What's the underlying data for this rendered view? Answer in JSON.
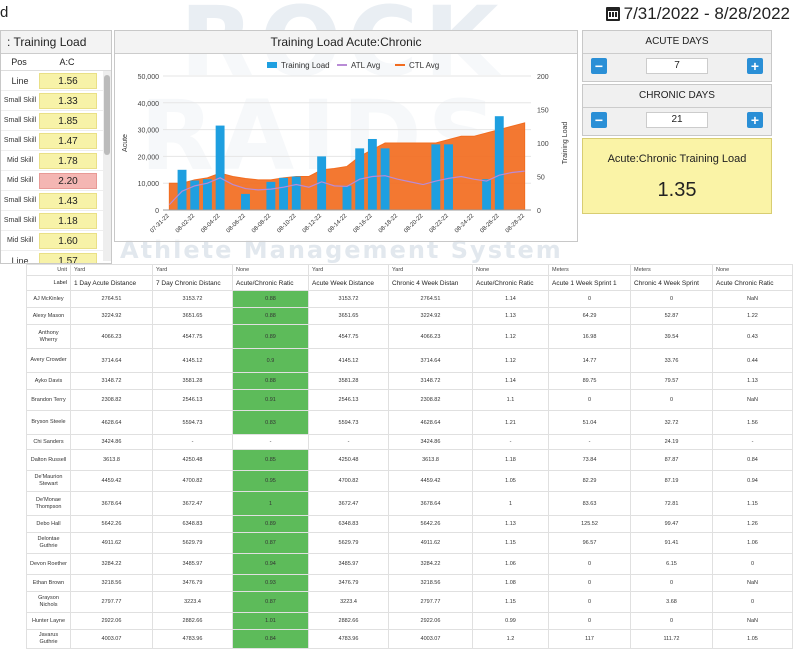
{
  "header": {
    "date_range": "7/31/2022 - 8/28/2022",
    "left_clip": "d"
  },
  "colors": {
    "accent_blue": "#2a8fd6",
    "training_load": "#1e9fe0",
    "ctl": "#f26c1f",
    "atl": "#b98bd6",
    "highlight_green": "#5dbb5a",
    "highlight_yellow": "#f7f2a8",
    "highlight_red": "#f4b6b3"
  },
  "left_panel": {
    "title": ": Training Load",
    "col_pos": "Pos",
    "col_ac": "A:C",
    "rows": [
      {
        "pos": "Line",
        "ac": "1.56",
        "red": false
      },
      {
        "pos": "Small Skill",
        "ac": "1.33",
        "red": false
      },
      {
        "pos": "Small Skill",
        "ac": "1.85",
        "red": false
      },
      {
        "pos": "Small Skill",
        "ac": "1.47",
        "red": false
      },
      {
        "pos": "Mid Skill",
        "ac": "1.78",
        "red": false
      },
      {
        "pos": "Mid Skill",
        "ac": "2.20",
        "red": true
      },
      {
        "pos": "Small Skill",
        "ac": "1.43",
        "red": false
      },
      {
        "pos": "Small Skill",
        "ac": "1.18",
        "red": false
      },
      {
        "pos": "Mid Skill",
        "ac": "1.60",
        "red": false
      },
      {
        "pos": "Line",
        "ac": "1.57",
        "red": false
      }
    ]
  },
  "chart_panel": {
    "title": "Training Load Acute:Chronic"
  },
  "chart_data": {
    "type": "bar",
    "legend": [
      "Training Load",
      "ATL Avg",
      "CTL Avg"
    ],
    "legend_position": "top",
    "ylabel_left": "Acute",
    "ylabel_right": "Training Load",
    "ylim_left": [
      0,
      50000
    ],
    "ylim_right": [
      0,
      200
    ],
    "left_ticks": [
      "0",
      "10,000",
      "20,000",
      "30,000",
      "40,000",
      "50,000"
    ],
    "right_ticks": [
      "0",
      "50",
      "100",
      "150",
      "200"
    ],
    "x": [
      "07-31-22",
      "08-01-22",
      "08-02-22",
      "08-03-22",
      "08-04-22",
      "08-05-22",
      "08-06-22",
      "08-07-22",
      "08-08-22",
      "08-09-22",
      "08-10-22",
      "08-11-22",
      "08-12-22",
      "08-13-22",
      "08-14-22",
      "08-15-22",
      "08-16-22",
      "08-17-22",
      "08-18-22",
      "08-19-22",
      "08-20-22",
      "08-21-22",
      "08-22-22",
      "08-23-22",
      "08-24-22",
      "08-25-22",
      "08-26-22",
      "08-27-22",
      "08-28-22"
    ],
    "x_tick_labels": [
      "07-31-22",
      "08-02-22",
      "08-04-22",
      "08-06-22",
      "08-08-22",
      "08-10-22",
      "08-12-22",
      "08-14-22",
      "08-16-22",
      "08-18-22",
      "08-20-22",
      "08-22-22",
      "08-24-22",
      "08-26-22",
      "08-28-22"
    ],
    "series": [
      {
        "name": "Training Load",
        "kind": "bar",
        "axis": "left",
        "values": [
          0,
          15000,
          11000,
          11500,
          31500,
          0,
          6000,
          0,
          10500,
          12000,
          12500,
          0,
          20000,
          0,
          9000,
          23000,
          26500,
          23000,
          0,
          0,
          0,
          24500,
          24500,
          0,
          0,
          11500,
          35000,
          0,
          0
        ]
      },
      {
        "name": "ATL Avg",
        "kind": "line",
        "axis": "left",
        "values": [
          2000,
          7000,
          9000,
          10000,
          12000,
          9500,
          8000,
          7500,
          7800,
          8500,
          9500,
          8500,
          10500,
          9000,
          8800,
          11500,
          12500,
          12800,
          11500,
          10500,
          9500,
          10800,
          11800,
          12500,
          11500,
          10800,
          13000,
          14000,
          14500
        ]
      },
      {
        "name": "CTL Avg",
        "kind": "area",
        "axis": "right",
        "values": [
          40,
          40,
          45,
          48,
          55,
          50,
          47,
          45,
          45,
          48,
          50,
          50,
          60,
          62,
          65,
          80,
          90,
          100,
          100,
          100,
          100,
          100,
          105,
          110,
          110,
          115,
          120,
          125,
          130
        ]
      }
    ]
  },
  "acute_days": {
    "label": "ACUTE DAYS",
    "value": "7",
    "minus": "−",
    "plus": "+"
  },
  "chronic_days": {
    "label": "CHRONIC DAYS",
    "value": "21",
    "minus": "−",
    "plus": "+"
  },
  "ratio_box": {
    "title": "Acute:Chronic Training Load",
    "value": "1.35"
  },
  "table": {
    "unit_label": "Unit",
    "label_header": "Label",
    "units": [
      "Yard",
      "Yard",
      "None",
      "Yard",
      "Yard",
      "None",
      "Meters",
      "Meters",
      "None"
    ],
    "columns": [
      "1 Day Acute Distance",
      "7 Day Chronic Distanc",
      "Acute/Chronic Ratic",
      "Acute Week Distance",
      "Chronic 4 Week Distan",
      "Acute/Chronic Ratic",
      "Acute 1 Week Sprint 1",
      "Chronic 4 Week Sprint",
      "Acute Chronic Ratic"
    ],
    "rows": [
      {
        "name": "AJ McKinley",
        "vals": [
          "2764.51",
          "3153.72",
          "0.88",
          "3153.72",
          "2764.51",
          "1.14",
          "0",
          "0",
          "NaN"
        ],
        "green": true
      },
      {
        "name": "Alexy Mason",
        "vals": [
          "3224.92",
          "3651.65",
          "0.88",
          "3651.65",
          "3224.92",
          "1.13",
          "64.29",
          "52.87",
          "1.22"
        ],
        "green": true
      },
      {
        "name": "Anthony Wherry",
        "vals": [
          "4066.23",
          "4547.75",
          "0.89",
          "4547.75",
          "4066.23",
          "1.12",
          "16.98",
          "39.54",
          "0.43"
        ],
        "green": true
      },
      {
        "name": "Avery Crowder",
        "vals": [
          "3714.64",
          "4145.12",
          "0.9",
          "4145.12",
          "3714.64",
          "1.12",
          "14.77",
          "33.76",
          "0.44"
        ],
        "green": true
      },
      {
        "name": "Ayko Davis",
        "vals": [
          "3148.72",
          "3581.28",
          "0.88",
          "3581.28",
          "3148.72",
          "1.14",
          "89.75",
          "79.57",
          "1.13"
        ],
        "green": true
      },
      {
        "name": "Brandon Terry",
        "vals": [
          "2308.82",
          "2546.13",
          "0.91",
          "2546.13",
          "2308.82",
          "1.1",
          "0",
          "0",
          "NaN"
        ],
        "green": true
      },
      {
        "name": "Bryson Steele",
        "vals": [
          "4628.64",
          "5594.73",
          "0.83",
          "5594.73",
          "4628.64",
          "1.21",
          "51.04",
          "32.72",
          "1.56"
        ],
        "green": true
      },
      {
        "name": "Chi Sanders",
        "vals": [
          "3424.86",
          "-",
          "-",
          "-",
          "3424.86",
          "-",
          "-",
          "24.19",
          "-"
        ],
        "green": false
      },
      {
        "name": "Dalton Russell",
        "vals": [
          "3613.8",
          "4250.48",
          "0.85",
          "4250.48",
          "3613.8",
          "1.18",
          "73.84",
          "87.87",
          "0.84"
        ],
        "green": true
      },
      {
        "name": "De'Maurion Stewart",
        "vals": [
          "4459.42",
          "4700.82",
          "0.95",
          "4700.82",
          "4459.42",
          "1.05",
          "82.29",
          "87.19",
          "0.94"
        ],
        "green": true
      },
      {
        "name": "De'Monae Thompson",
        "vals": [
          "3678.64",
          "3672.47",
          "1",
          "3672.47",
          "3678.64",
          "1",
          "83.63",
          "72.81",
          "1.15"
        ],
        "green": true
      },
      {
        "name": "Debo Hall",
        "vals": [
          "5642.26",
          "6348.83",
          "0.89",
          "6348.83",
          "5642.26",
          "1.13",
          "125.52",
          "99.47",
          "1.26"
        ],
        "green": true
      },
      {
        "name": "Delontae Guthrie",
        "vals": [
          "4911.62",
          "5629.79",
          "0.87",
          "5629.79",
          "4911.62",
          "1.15",
          "96.57",
          "91.41",
          "1.06"
        ],
        "green": true
      },
      {
        "name": "Devon Roether",
        "vals": [
          "3284.22",
          "3485.97",
          "0.94",
          "3485.97",
          "3284.22",
          "1.06",
          "0",
          "6.15",
          "0"
        ],
        "green": true
      },
      {
        "name": "Ethan Brown",
        "vals": [
          "3218.56",
          "3476.79",
          "0.93",
          "3476.79",
          "3218.56",
          "1.08",
          "0",
          "0",
          "NaN"
        ],
        "green": true
      },
      {
        "name": "Grayson Nichols",
        "vals": [
          "2797.77",
          "3223.4",
          "0.87",
          "3223.4",
          "2797.77",
          "1.15",
          "0",
          "3.68",
          "0"
        ],
        "green": true
      },
      {
        "name": "Hunter Layne",
        "vals": [
          "2922.06",
          "2882.66",
          "1.01",
          "2882.66",
          "2922.06",
          "0.99",
          "0",
          "0",
          "NaN"
        ],
        "green": true
      },
      {
        "name": "Javarus Guthrie",
        "vals": [
          "4003.07",
          "4783.96",
          "0.84",
          "4783.96",
          "4003.07",
          "1.2",
          "117",
          "111.72",
          "1.05"
        ],
        "green": true
      }
    ]
  }
}
